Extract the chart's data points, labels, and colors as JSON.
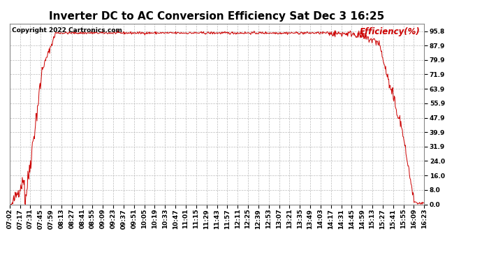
{
  "title": "Inverter DC to AC Conversion Efficiency Sat Dec 3 16:25",
  "copyright": "Copyright 2022 Cartronics.com",
  "legend_label": "Efficiency(%)",
  "line_color": "#cc0000",
  "background_color": "#ffffff",
  "grid_color": "#bbbbbb",
  "yticks": [
    0.0,
    8.0,
    16.0,
    24.0,
    31.9,
    39.9,
    47.9,
    55.9,
    63.9,
    71.9,
    79.9,
    87.9,
    95.8
  ],
  "ylim": [
    0.0,
    100.0
  ],
  "xtick_labels": [
    "07:02",
    "07:17",
    "07:31",
    "07:45",
    "07:59",
    "08:13",
    "08:27",
    "08:41",
    "08:55",
    "09:09",
    "09:23",
    "09:37",
    "09:51",
    "10:05",
    "10:19",
    "10:33",
    "10:47",
    "11:01",
    "11:15",
    "11:29",
    "11:43",
    "11:57",
    "12:11",
    "12:25",
    "12:39",
    "12:53",
    "13:07",
    "13:21",
    "13:35",
    "13:49",
    "14:03",
    "14:17",
    "14:31",
    "14:45",
    "14:59",
    "15:13",
    "15:27",
    "15:41",
    "15:55",
    "16:09",
    "16:23"
  ],
  "title_fontsize": 11,
  "axis_fontsize": 6.5,
  "copyright_fontsize": 6.5,
  "legend_fontsize": 8.5
}
